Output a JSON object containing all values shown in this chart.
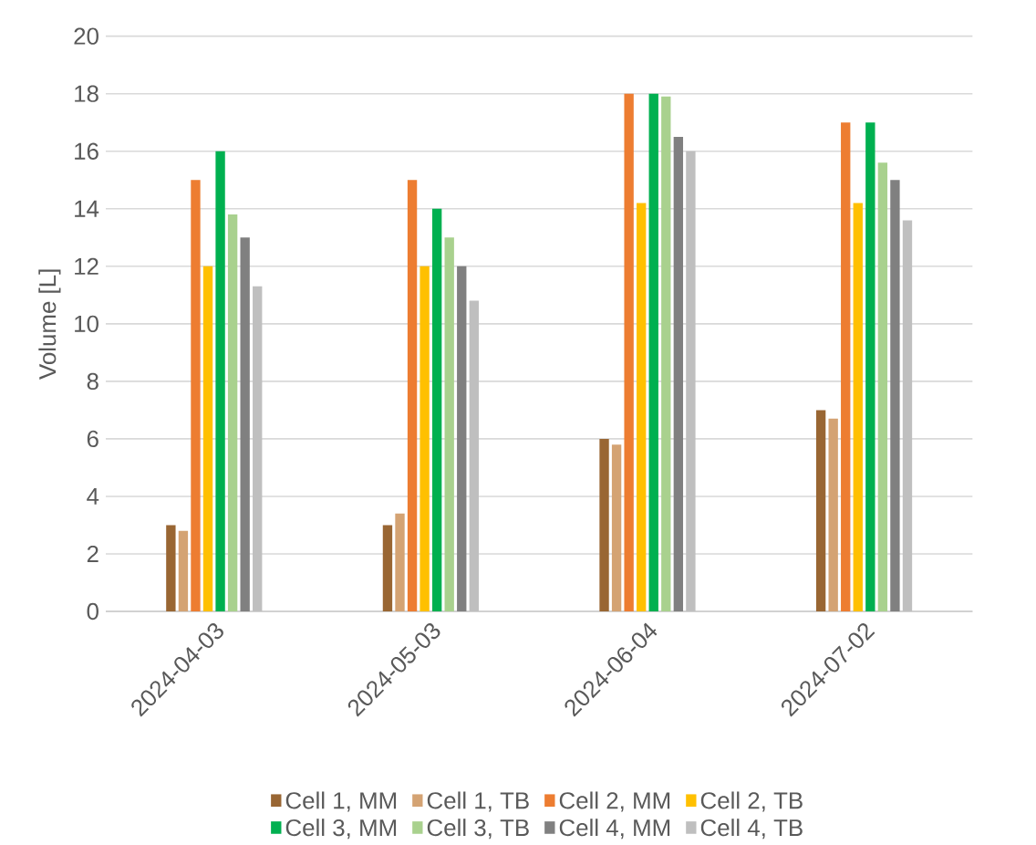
{
  "chart_data": {
    "type": "bar",
    "ylabel": "Volume [L]",
    "categories": [
      "2024-04-03",
      "2024-05-03",
      "2024-06-04",
      "2024-07-02"
    ],
    "series": [
      {
        "name": "Cell 1, MM",
        "color": "#996633",
        "values": [
          3,
          3,
          6,
          7
        ]
      },
      {
        "name": "Cell 1, TB",
        "color": "#d4a373",
        "values": [
          2.8,
          3.4,
          5.8,
          6.7
        ]
      },
      {
        "name": "Cell 2, MM",
        "color": "#ed7d31",
        "values": [
          15,
          15,
          18,
          17
        ]
      },
      {
        "name": "Cell 2, TB",
        "color": "#ffc000",
        "values": [
          12,
          12,
          14.2,
          14.2
        ]
      },
      {
        "name": "Cell 3, MM",
        "color": "#00b050",
        "values": [
          16,
          14,
          18,
          17
        ]
      },
      {
        "name": "Cell 3, TB",
        "color": "#a9d18e",
        "values": [
          13.8,
          13,
          17.9,
          15.6
        ]
      },
      {
        "name": "Cell 4, MM",
        "color": "#808080",
        "values": [
          13,
          12,
          16.5,
          15
        ]
      },
      {
        "name": "Cell 4, TB",
        "color": "#bfbfbf",
        "values": [
          11.3,
          10.8,
          16,
          13.6
        ]
      }
    ],
    "ylim": [
      0,
      20
    ],
    "yticks": [
      0,
      2,
      4,
      6,
      8,
      10,
      12,
      14,
      16,
      18,
      20
    ],
    "grid": "y",
    "legend": "bottom"
  }
}
